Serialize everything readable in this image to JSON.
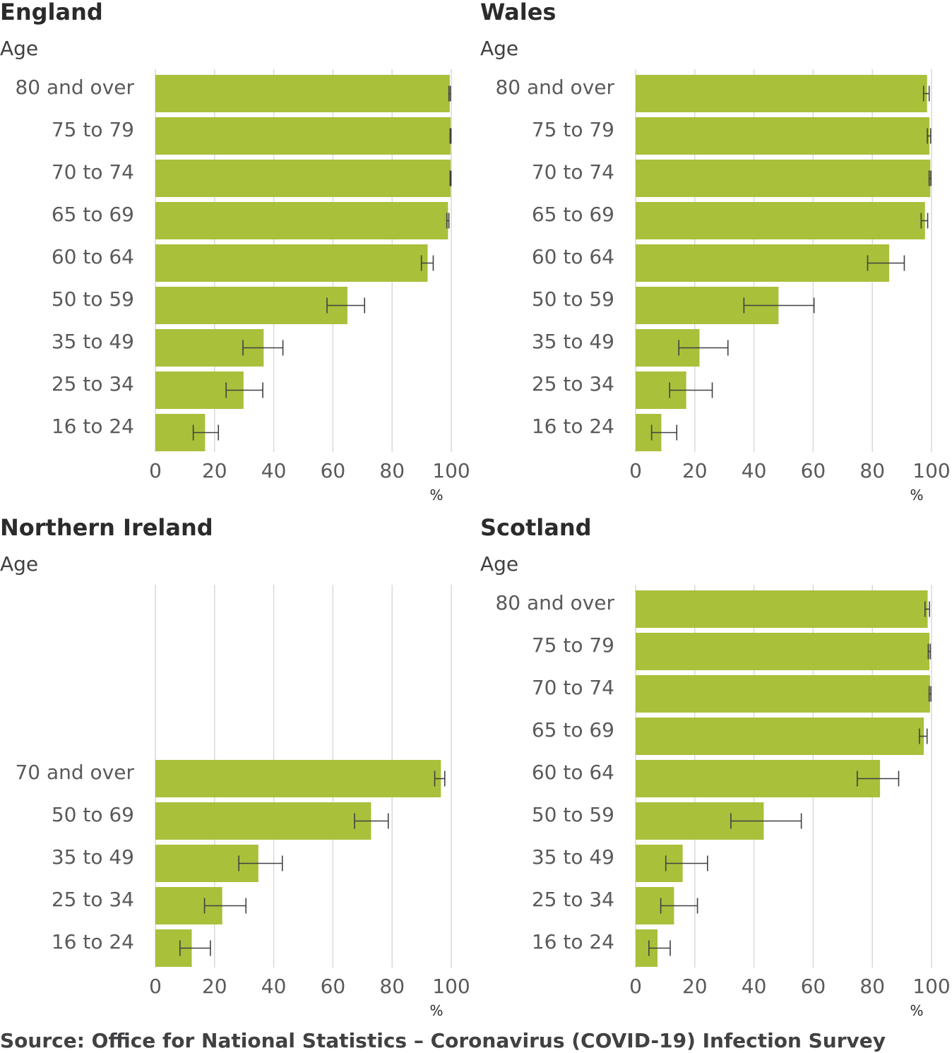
{
  "colors": {
    "bar": "#a8c03a",
    "grid": "#d9d9d9",
    "errorbar": "#414042"
  },
  "source": "Source: Office for National Statistics – Coronavirus (COVID-19) Infection Survey",
  "chart_data": [
    {
      "type": "bar",
      "orientation": "horizontal",
      "title": "England",
      "ylabel": "Age",
      "xlabel": "%",
      "xlim": [
        0,
        100
      ],
      "xticks": [
        0,
        20,
        40,
        60,
        80,
        100
      ],
      "categories": [
        "80 and over",
        "75 to 79",
        "70 to 74",
        "65 to 69",
        "60 to 64",
        "50 to 59",
        "35 to 49",
        "25 to 34",
        "16 to 24"
      ],
      "values": [
        99.5,
        99.8,
        99.8,
        98.9,
        92.0,
        64.9,
        36.6,
        29.8,
        16.8
      ],
      "lower": [
        99.2,
        99.6,
        99.6,
        98.5,
        89.9,
        58.0,
        29.6,
        23.9,
        12.8
      ],
      "upper": [
        99.7,
        99.9,
        99.9,
        99.2,
        93.9,
        70.7,
        43.1,
        36.3,
        21.3
      ],
      "grid": true
    },
    {
      "type": "bar",
      "orientation": "horizontal",
      "title": "Wales",
      "ylabel": "Age",
      "xlabel": "%",
      "xlim": [
        0,
        100
      ],
      "xticks": [
        0,
        20,
        40,
        60,
        80,
        100
      ],
      "categories": [
        "80 and over",
        "75 to 79",
        "70 to 74",
        "65 to 69",
        "60 to 64",
        "50 to 59",
        "35 to 49",
        "25 to 34",
        "16 to 24"
      ],
      "values": [
        98.5,
        99.3,
        99.6,
        97.8,
        85.7,
        48.3,
        21.6,
        17.1,
        8.7
      ],
      "lower": [
        97.3,
        98.6,
        99.2,
        96.5,
        78.4,
        36.6,
        14.6,
        11.5,
        5.4
      ],
      "upper": [
        99.2,
        99.7,
        99.8,
        98.7,
        90.8,
        60.3,
        31.2,
        25.9,
        13.9
      ],
      "grid": true
    },
    {
      "type": "bar",
      "orientation": "horizontal",
      "title": "Northern Ireland",
      "ylabel": "Age",
      "xlabel": "%",
      "xlim": [
        0,
        100
      ],
      "xticks": [
        0,
        20,
        40,
        60,
        80,
        100
      ],
      "categories": [
        "70 and over",
        "50 to 69",
        "35 to 49",
        "25 to 34",
        "16 to 24"
      ],
      "slot_offset": 4,
      "values": [
        96.5,
        72.9,
        34.8,
        22.6,
        12.3
      ],
      "lower": [
        94.4,
        67.3,
        28.2,
        16.6,
        8.3
      ],
      "upper": [
        97.8,
        78.7,
        42.9,
        30.6,
        18.6
      ],
      "grid": true
    },
    {
      "type": "bar",
      "orientation": "horizontal",
      "title": "Scotland",
      "ylabel": "Age",
      "xlabel": "%",
      "xlim": [
        0,
        100
      ],
      "xticks": [
        0,
        20,
        40,
        60,
        80,
        100
      ],
      "categories": [
        "80 and over",
        "75 to 79",
        "70 to 74",
        "65 to 69",
        "60 to 64",
        "50 to 59",
        "35 to 49",
        "25 to 34",
        "16 to 24"
      ],
      "values": [
        98.7,
        99.3,
        99.5,
        97.4,
        82.6,
        43.3,
        15.9,
        13.0,
        7.4
      ],
      "lower": [
        97.8,
        98.9,
        99.2,
        95.9,
        74.9,
        32.2,
        10.2,
        8.5,
        4.5
      ],
      "upper": [
        99.3,
        99.6,
        99.8,
        98.5,
        88.9,
        56.0,
        24.3,
        20.9,
        11.7
      ],
      "grid": true
    }
  ]
}
